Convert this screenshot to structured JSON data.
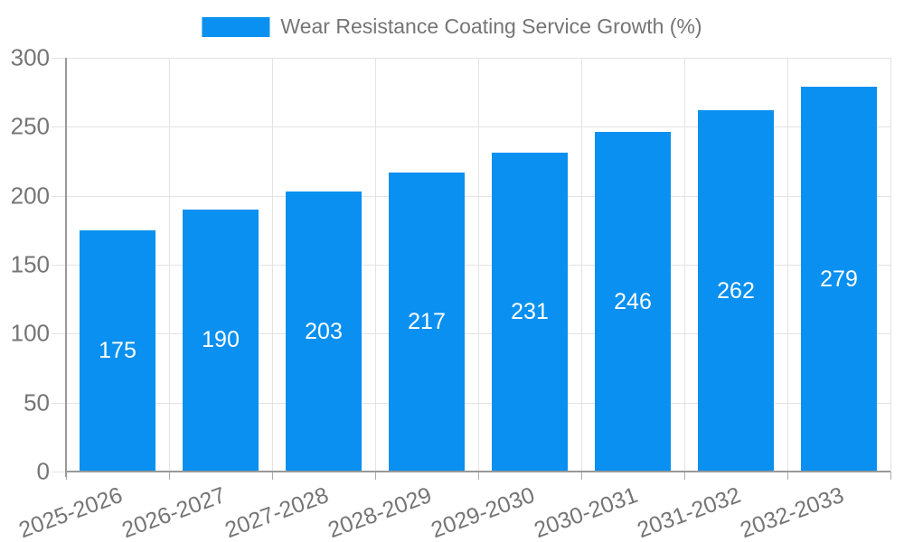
{
  "chart_data": {
    "type": "bar",
    "title": "Wear Resistance Coating Service Growth (%)",
    "legend": {
      "label": "Wear Resistance Coating Service Growth (%)",
      "position": "top"
    },
    "categories": [
      "2025-2026",
      "2026-2027",
      "2027-2028",
      "2028-2029",
      "2029-2030",
      "2030-2031",
      "2031-2032",
      "2032-2033"
    ],
    "values": [
      175,
      190,
      203,
      217,
      231,
      246,
      262,
      279
    ],
    "xlabel": "",
    "ylabel": "",
    "ylim": [
      0,
      300
    ],
    "yticks": [
      0,
      50,
      100,
      150,
      200,
      250,
      300
    ],
    "grid": true,
    "bar_color": "#0A90F0",
    "bar_label_color": "#FFFFFF",
    "axis_text_color": "#757575",
    "gridline_color": "#e3e3e3",
    "axis_line_color": "#999999",
    "x_label_rotation_deg": -20
  }
}
